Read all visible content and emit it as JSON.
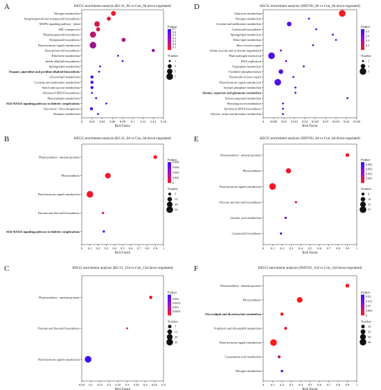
{
  "figure": {
    "panels": [
      {
        "id": "A",
        "letter": "A",
        "title": "KEGG enrichment analysis (R2-21_6h vs Con_6h down-regulated)",
        "xlabel": "Rich Factor",
        "legend_padj_title": "Padjust",
        "legend_num_title": "Number"
      },
      {
        "id": "B",
        "letter": "B",
        "title": "KEGG enrichment analysis (R2-21_6d vs Con_6d down-regulated)",
        "xlabel": "Rich Factor",
        "legend_padj_title": "Padjust",
        "legend_num_title": "Number"
      },
      {
        "id": "C",
        "letter": "C",
        "title": "KEGG enrichment analysis (R2-21_15d vs Con_15d down-regulated)",
        "xlabel": "Rich Factor",
        "legend_padj_title": "Padjust",
        "legend_num_title": "Number"
      },
      {
        "id": "D",
        "letter": "D",
        "title": "KEGG enrichment analysis (XHYN2_6h vs Con_6h down-regulated)",
        "xlabel": "Rich Factor",
        "legend_padj_title": "Padjust",
        "legend_num_title": "Number"
      },
      {
        "id": "E",
        "letter": "E",
        "title": "KEGG enrichment analysis (XHYN2_6d vs Con_6d down-regulated)",
        "xlabel": "Rich Factor",
        "legend_padj_title": "Padjust",
        "legend_num_title": "Number"
      },
      {
        "id": "F",
        "letter": "F",
        "title": "KEGG enrichment analysis (XHYN2_15d vs Con_15d down-regulated)",
        "xlabel": "Rich Factor",
        "legend_padj_title": "Padjust",
        "legend_num_title": "Number"
      }
    ]
  },
  "colors": {
    "low": "#ff1a1a",
    "high": "#3a10ff",
    "axis": "#222222",
    "text": "#111111"
  },
  "chart_data": [
    {
      "panel": "A",
      "type": "scatter",
      "title": "KEGG enrichment analysis (R2-21_6h vs Con_6h down-regulated)",
      "xlabel": "Rich Factor",
      "ylabel": "",
      "xlim": [
        0,
        0.16
      ],
      "xticks": [
        0,
        0.02,
        0.04,
        0.06,
        0.08,
        0.1,
        0.12,
        0.14,
        0.16
      ],
      "xtick_labels": [
        "0",
        "0.02",
        "0.04",
        "0.06",
        "0.08",
        "0.1",
        "0.12",
        "0.14",
        "0.16"
      ],
      "padj_range": [
        0,
        0.7
      ],
      "padj_ticks": [
        0.7,
        0.6,
        0.5,
        0.4,
        0.3,
        0.2,
        0.1
      ],
      "padj_tick_labels": [
        "0.7",
        "0.6",
        "0.5",
        "0.4",
        "0.3",
        "0.2",
        "0.1"
      ],
      "size_legend": [
        1,
        3,
        5,
        7
      ],
      "size_range": [
        1,
        7
      ],
      "points": [
        {
          "term": "Nitrogen metabolism",
          "x": 0.062,
          "padj": 0.05,
          "n": 4
        },
        {
          "term": "Sesquiterpenoid and triterpenoid biosynthesis",
          "x": 0.053,
          "padj": 0.1,
          "n": 3
        },
        {
          "term": "MAPK signaling pathway - plant",
          "x": 0.03,
          "padj": 0.15,
          "n": 5
        },
        {
          "term": "ABC transporters",
          "x": 0.032,
          "padj": 0.15,
          "n": 3
        },
        {
          "term": "Phenylpropanoid biosynthesis",
          "x": 0.022,
          "padj": 0.25,
          "n": 6
        },
        {
          "term": "Diterpenoid biosynthesis",
          "x": 0.082,
          "padj": 0.3,
          "n": 3
        },
        {
          "term": "Plant hormone signal transduction",
          "x": 0.022,
          "padj": 0.35,
          "n": 7
        },
        {
          "term": "Brassinosteroid biosynthesis",
          "x": 0.14,
          "padj": 0.4,
          "n": 2
        },
        {
          "term": "Riboflavin metabolism",
          "x": 0.071,
          "padj": 0.6,
          "n": 1
        },
        {
          "term": "Indole alkaloid biosynthesis",
          "x": 0.08,
          "padj": 0.65,
          "n": 1
        },
        {
          "term": "Sphingolipid metabolism",
          "x": 0.036,
          "padj": 0.6,
          "n": 1
        },
        {
          "term": "Tropane, piperidine and pyridine alkaloid biosynthesis",
          "x": 0.034,
          "padj": 0.6,
          "n": 1
        },
        {
          "term": "Glycerolipid metabolism",
          "x": 0.02,
          "padj": 0.65,
          "n": 2
        },
        {
          "term": "Cysteine and methionine metabolism",
          "x": 0.02,
          "padj": 0.65,
          "n": 2
        },
        {
          "term": "Starch and sucrose metabolism",
          "x": 0.02,
          "padj": 0.65,
          "n": 2
        },
        {
          "term": "Aminoacyl-tRNA biosynthesis",
          "x": 0.02,
          "padj": 0.65,
          "n": 1
        },
        {
          "term": "Phenylalanine metabolism",
          "x": 0.028,
          "padj": 0.65,
          "n": 1
        },
        {
          "term": "AGE-RAGE signaling pathway in diabetic complications",
          "x": 0.048,
          "padj": 0.65,
          "n": 1
        },
        {
          "term": "Glycolysis / Gluconeogenesis",
          "x": 0.019,
          "padj": 0.65,
          "n": 2
        },
        {
          "term": "Thiamine metabolism",
          "x": 0.032,
          "padj": 0.68,
          "n": 1
        }
      ]
    },
    {
      "panel": "B",
      "type": "scatter",
      "title": "KEGG enrichment analysis (R2-21_6d vs Con_6d down-regulated)",
      "xlabel": "Rich Factor",
      "ylabel": "",
      "xlim": [
        0,
        1.0
      ],
      "xticks": [
        0,
        0.1,
        0.2,
        0.3,
        0.4,
        0.5,
        0.6,
        0.7,
        0.8,
        0.9,
        1.0
      ],
      "xtick_labels": [
        "0",
        "0.1",
        "0.2",
        "0.3",
        "0.4",
        "0.5",
        "0.6",
        "0.7",
        "0.8",
        "0.9",
        "1"
      ],
      "padj_range": [
        0,
        0.008
      ],
      "padj_ticks": [
        0.008,
        0.006,
        0.004,
        0.002,
        0
      ],
      "padj_tick_labels": [
        "0.008",
        "0.006",
        "0.004",
        "0.002",
        "0"
      ],
      "size_legend": [
        5,
        15,
        24,
        34
      ],
      "size_range": [
        2,
        34
      ],
      "points": [
        {
          "term": "Photosynthesis - antenna proteins",
          "x": 0.9,
          "padj": 0.0005,
          "n": 10
        },
        {
          "term": "Photosynthesis",
          "x": 0.32,
          "padj": 0.0005,
          "n": 24
        },
        {
          "term": "Plant hormone signal transduction",
          "x": 0.1,
          "padj": 0.0005,
          "n": 34
        },
        {
          "term": "Flavone and flavonol biosynthesis",
          "x": 0.26,
          "padj": 0.001,
          "n": 3
        },
        {
          "term": "AGE-RAGE signaling pathway in diabetic complications",
          "x": 0.27,
          "padj": 0.0078,
          "n": 3
        }
      ]
    },
    {
      "panel": "C",
      "type": "scatter",
      "title": "KEGG enrichment analysis (R2-21_15d vs Con_15d down-regulated)",
      "xlabel": "Rich Factor",
      "ylabel": "",
      "xlim": [
        0.05,
        0.5
      ],
      "xticks": [
        0.05,
        0.1,
        0.15,
        0.2,
        0.25,
        0.3,
        0.35,
        0.4,
        0.45,
        0.5
      ],
      "xtick_labels": [
        "0.05",
        "0.1",
        "0.15",
        "0.2",
        "0.25",
        "0.3",
        "0.35",
        "0.4",
        "0.45",
        "0.5"
      ],
      "padj_range": [
        0,
        0.0025
      ],
      "padj_ticks": [
        0.002,
        0.0015,
        0.001,
        0.0005
      ],
      "padj_tick_labels": [
        "0.002",
        "0.0015",
        "0.001",
        "0.0005"
      ],
      "size_legend": [
        7,
        13,
        20,
        26
      ],
      "size_range": [
        2,
        26
      ],
      "points": [
        {
          "term": "Photosynthesis - antenna proteins",
          "x": 0.43,
          "padj": 0.0002,
          "n": 6
        },
        {
          "term": "Flavone and flavonol biosynthesis",
          "x": 0.3,
          "padj": 0.0003,
          "n": 2
        },
        {
          "term": "Plant hormone signal transduction",
          "x": 0.085,
          "padj": 0.0024,
          "n": 26
        }
      ]
    },
    {
      "panel": "D",
      "type": "scatter",
      "title": "KEGG enrichment analysis (XHYN2_6h vs Con_6h down-regulated)",
      "xlabel": "Rich Factor",
      "ylabel": "",
      "xlim": [
        0,
        0.045
      ],
      "xticks": [
        0,
        0.005,
        0.01,
        0.015,
        0.02,
        0.025,
        0.03,
        0.035,
        0.04,
        0.045
      ],
      "xtick_labels": [
        "0",
        "0.005",
        "0.01",
        "0.015",
        "0.02",
        "0.025",
        "0.03",
        "0.035",
        "0.04",
        "0.045"
      ],
      "padj_range": [
        0.1,
        0.55
      ],
      "padj_ticks": [
        0.5,
        0.4,
        0.3,
        0.2
      ],
      "padj_tick_labels": [
        "0.5",
        "0.4",
        "0.3",
        "0.2"
      ],
      "size_legend": [
        1,
        2,
        3
      ],
      "size_range": [
        1,
        3
      ],
      "points": [
        {
          "term": "Galactose metabolism",
          "x": 0.038,
          "padj": 0.12,
          "n": 3
        },
        {
          "term": "Nitrogen metabolism",
          "x": 0.022,
          "padj": 0.5,
          "n": 1
        },
        {
          "term": "Cysteine and methionine metabolism",
          "x": 0.0125,
          "padj": 0.5,
          "n": 2
        },
        {
          "term": "Carotenoid biosynthesis",
          "x": 0.0255,
          "padj": 0.5,
          "n": 1
        },
        {
          "term": "Sphingolipid metabolism",
          "x": 0.0335,
          "padj": 0.5,
          "n": 1
        },
        {
          "term": "Ether lipid metabolism",
          "x": 0.035,
          "padj": 0.5,
          "n": 1
        },
        {
          "term": "Base excision repair",
          "x": 0.024,
          "padj": 0.5,
          "n": 1
        },
        {
          "term": "Valine, leucine and isoleucine degradation",
          "x": 0.0085,
          "padj": 0.5,
          "n": 1
        },
        {
          "term": "Plant-pathogen interaction",
          "x": 0.004,
          "padj": 0.5,
          "n": 3
        },
        {
          "term": "DNA replication",
          "x": 0.011,
          "padj": 0.5,
          "n": 1
        },
        {
          "term": "Tryptophan metabolism",
          "x": 0.0195,
          "padj": 0.5,
          "n": 1
        },
        {
          "term": "Oxidative phosphorylation",
          "x": 0.0085,
          "padj": 0.5,
          "n": 2
        },
        {
          "term": "Nucleotide excision repair",
          "x": 0.0145,
          "padj": 0.5,
          "n": 1
        },
        {
          "term": "Plant hormone signal transduction",
          "x": 0.007,
          "padj": 0.5,
          "n": 3
        },
        {
          "term": "Inositol phosphate metabolism",
          "x": 0.0155,
          "padj": 0.5,
          "n": 1
        },
        {
          "term": "Alanine, aspartate and glutamate metabolism",
          "x": 0.0155,
          "padj": 0.5,
          "n": 1
        },
        {
          "term": "Selenocompound metabolism",
          "x": 0.0405,
          "padj": 0.5,
          "n": 1
        },
        {
          "term": "Homologous recombination",
          "x": 0.0095,
          "padj": 0.5,
          "n": 1
        },
        {
          "term": "Aminoacyl-tRNA biosynthesis",
          "x": 0.0095,
          "padj": 0.5,
          "n": 1
        },
        {
          "term": "Glycine, serine and threonine metabolism",
          "x": 0.0095,
          "padj": 0.5,
          "n": 1
        }
      ]
    },
    {
      "panel": "E",
      "type": "scatter",
      "title": "KEGG enrichment analysis (XHYN2_6d vs Con_6d down-regulated)",
      "xlabel": "Rich Factor",
      "ylabel": "",
      "xlim": [
        0,
        1.0
      ],
      "xticks": [
        0,
        0.1,
        0.2,
        0.3,
        0.4,
        0.5,
        0.6,
        0.7,
        0.8,
        0.9,
        1.0
      ],
      "xtick_labels": [
        "0",
        "0.1",
        "0.2",
        "0.3",
        "0.4",
        "0.5",
        "0.6",
        "0.7",
        "0.8",
        "0.9",
        "1"
      ],
      "padj_range": [
        0,
        0.0045
      ],
      "padj_ticks": [
        0.004,
        0.003,
        0.002,
        0.001
      ],
      "padj_tick_labels": [
        "0.004",
        "0.003",
        "0.002",
        "0.001"
      ],
      "size_legend": [
        6,
        16,
        26,
        37
      ],
      "size_range": [
        2,
        37
      ],
      "points": [
        {
          "term": "Photosynthesis - antenna proteins",
          "x": 0.9,
          "padj": 0.0003,
          "n": 10
        },
        {
          "term": "Photosynthesis",
          "x": 0.27,
          "padj": 0.0004,
          "n": 22
        },
        {
          "term": "Plant hormone signal transduction",
          "x": 0.1,
          "padj": 0.0003,
          "n": 37
        },
        {
          "term": "Flavone and flavonol biosynthesis",
          "x": 0.35,
          "padj": 0.0008,
          "n": 3
        },
        {
          "term": "Linoleic acid metabolism",
          "x": 0.24,
          "padj": 0.0035,
          "n": 3
        },
        {
          "term": "Carotenoid biosynthesis",
          "x": 0.19,
          "padj": 0.0038,
          "n": 3
        }
      ]
    },
    {
      "panel": "F",
      "type": "scatter",
      "title": "KEGG enrichment analysis (XHYN2_15d vs Con_15d down-regulated)",
      "xlabel": "Rich Factor",
      "ylabel": "",
      "xlim": [
        0,
        1.0
      ],
      "xticks": [
        0,
        0.1,
        0.2,
        0.3,
        0.4,
        0.5,
        0.6,
        0.7,
        0.8,
        0.9,
        1.0
      ],
      "xtick_labels": [
        "0",
        "0.1",
        "0.2",
        "0.3",
        "0.4",
        "0.5",
        "0.6",
        "0.7",
        "0.8",
        "0.9",
        "1"
      ],
      "padj_range": [
        0,
        0.022
      ],
      "padj_ticks": [
        0.02,
        0.015,
        0.01,
        0.005,
        0
      ],
      "padj_tick_labels": [
        "0.02",
        "0.015",
        "0.01",
        "0.005",
        "0"
      ],
      "size_legend": [
        10,
        20,
        30,
        40
      ],
      "size_range": [
        2,
        40
      ],
      "points": [
        {
          "term": "Photosynthesis - antenna proteins",
          "x": 0.9,
          "padj": 0.0005,
          "n": 12
        },
        {
          "term": "Photosynthesis",
          "x": 0.39,
          "padj": 0.0005,
          "n": 28
        },
        {
          "term": "Glycerolipid and dicarboxylate metabolism",
          "x": 0.2,
          "padj": 0.001,
          "n": 8
        },
        {
          "term": "Porphyrin and chlorophyll metabolism",
          "x": 0.24,
          "padj": 0.002,
          "n": 6
        },
        {
          "term": "Plant hormone signal transduction",
          "x": 0.11,
          "padj": 0.0005,
          "n": 40
        },
        {
          "term": "Cyanoamino acid metabolism",
          "x": 0.17,
          "padj": 0.008,
          "n": 6
        },
        {
          "term": "Nitrogen metabolism",
          "x": 0.2,
          "padj": 0.02,
          "n": 4
        }
      ]
    }
  ]
}
